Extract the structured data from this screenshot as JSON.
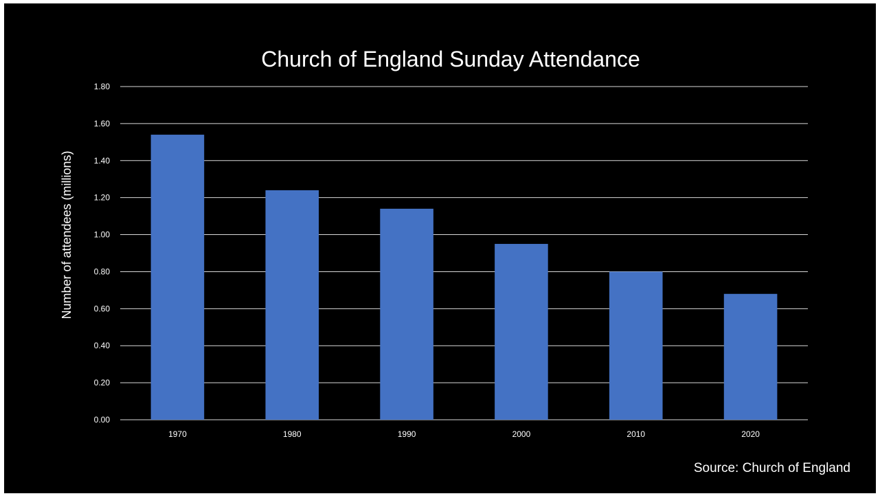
{
  "chart_data": {
    "type": "bar",
    "title": "Church of England Sunday Attendance",
    "xlabel": "",
    "ylabel": "Number of attendees (millions)",
    "categories": [
      "1970",
      "1980",
      "1990",
      "2000",
      "2010",
      "2020"
    ],
    "values": [
      1.54,
      1.24,
      1.14,
      0.95,
      0.8,
      0.68
    ],
    "ylim": [
      0,
      1.8
    ],
    "yticks": [
      "0.00",
      "0.20",
      "0.40",
      "0.60",
      "0.80",
      "1.00",
      "1.20",
      "1.40",
      "1.60",
      "1.80"
    ],
    "grid": true,
    "legend": "none",
    "bar_color": "#4472C4",
    "background_color": "#000000",
    "text_color": "#ffffff",
    "gridline_color": "#d9d9d9"
  },
  "footer": {
    "source": "Source: Church of England"
  }
}
